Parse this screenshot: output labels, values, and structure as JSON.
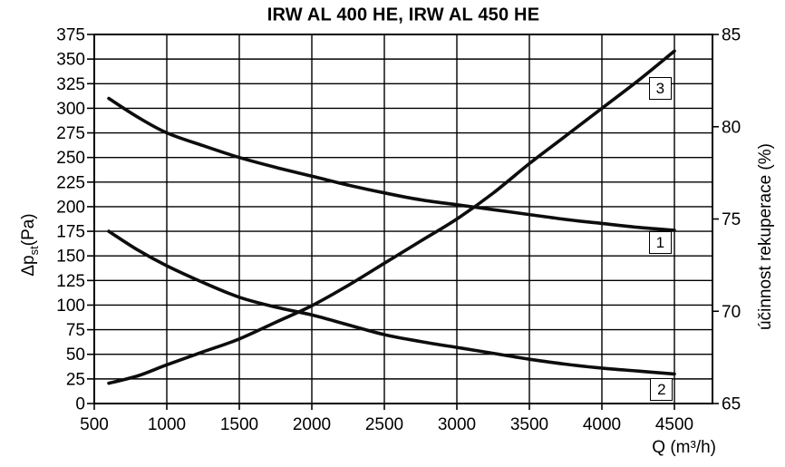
{
  "chart_data": {
    "type": "line",
    "title": "IRW AL 400 HE, IRW AL 450 HE",
    "x_axis": {
      "label": "Q (m³/h)",
      "min": 500,
      "max": 4760,
      "ticks": [
        500,
        1000,
        1500,
        2000,
        2500,
        3000,
        3500,
        4000,
        4500
      ],
      "grid": true
    },
    "y_left": {
      "label_pre": "Δp",
      "label_sub": "st",
      "label_post": "(Pa)",
      "min": 0,
      "max": 375,
      "tick_step": 25,
      "ticks": [
        375,
        350,
        325,
        300,
        275,
        250,
        225,
        200,
        175,
        150,
        125,
        100,
        75,
        50,
        25,
        0
      ],
      "grid": true
    },
    "y_right": {
      "label": "účinnost rekuperace (%)",
      "min": 65,
      "max": 85,
      "ticks": [
        85,
        80,
        75,
        70,
        65
      ]
    },
    "series": [
      {
        "name": "1",
        "axis": "left",
        "points": [
          [
            600,
            310
          ],
          [
            800,
            291
          ],
          [
            1000,
            275
          ],
          [
            1250,
            262
          ],
          [
            1500,
            250
          ],
          [
            1750,
            240
          ],
          [
            2000,
            231
          ],
          [
            2250,
            222
          ],
          [
            2500,
            214
          ],
          [
            2750,
            207
          ],
          [
            3000,
            202
          ],
          [
            3250,
            197
          ],
          [
            3500,
            192
          ],
          [
            3750,
            187
          ],
          [
            4000,
            183
          ],
          [
            4250,
            179
          ],
          [
            4500,
            176
          ]
        ]
      },
      {
        "name": "2",
        "axis": "left",
        "points": [
          [
            600,
            175
          ],
          [
            800,
            156
          ],
          [
            1000,
            140
          ],
          [
            1250,
            123
          ],
          [
            1500,
            108
          ],
          [
            1750,
            98
          ],
          [
            2000,
            90
          ],
          [
            2250,
            80
          ],
          [
            2500,
            70
          ],
          [
            2750,
            63
          ],
          [
            3000,
            57
          ],
          [
            3250,
            51
          ],
          [
            3500,
            45
          ],
          [
            3750,
            40
          ],
          [
            4000,
            36
          ],
          [
            4250,
            33
          ],
          [
            4500,
            30
          ]
        ]
      },
      {
        "name": "3",
        "axis": "right",
        "points": [
          [
            600,
            66.1
          ],
          [
            800,
            66.5
          ],
          [
            1000,
            67.1
          ],
          [
            1250,
            67.8
          ],
          [
            1500,
            68.5
          ],
          [
            1750,
            69.4
          ],
          [
            2000,
            70.3
          ],
          [
            2250,
            71.4
          ],
          [
            2500,
            72.6
          ],
          [
            2750,
            73.8
          ],
          [
            3000,
            75.0
          ],
          [
            3250,
            76.4
          ],
          [
            3500,
            78.0
          ],
          [
            3750,
            79.5
          ],
          [
            4000,
            81.0
          ],
          [
            4250,
            82.5
          ],
          [
            4500,
            84.1
          ]
        ]
      }
    ],
    "series_labels": [
      {
        "text": "3",
        "q": 4405,
        "pa": 320
      },
      {
        "text": "1",
        "q": 4405,
        "pa": 163
      },
      {
        "text": "2",
        "q": 4415,
        "pa": 14
      }
    ],
    "colors": {
      "curve": "#0d0d0d",
      "grid": "#000000",
      "frame": "#000000",
      "text": "#000000",
      "background": "#ffffff"
    }
  }
}
